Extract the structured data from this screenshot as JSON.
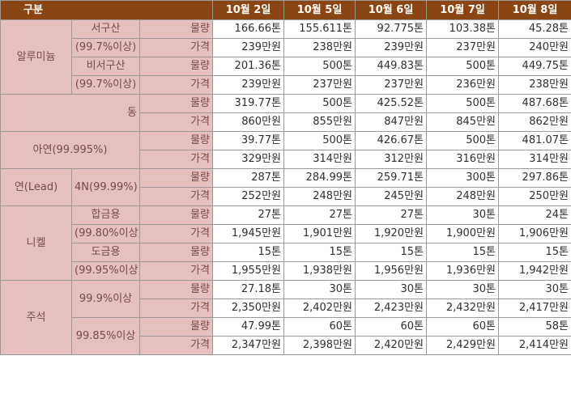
{
  "header": {
    "category": "구분",
    "dates": [
      "10월 2일",
      "10월 5일",
      "10월 6일",
      "10월 7일",
      "10월 8일"
    ]
  },
  "rows": [
    {
      "category": "알루미늄",
      "groups": [
        {
          "subtype": "서구산",
          "grade": "(99.7%이상)",
          "qty_label": "물량",
          "qty": [
            "166.66톤",
            "155.611톤",
            "92.775톤",
            "103.38톤",
            "45.28톤"
          ],
          "price_label": "가격",
          "price": [
            "239만원",
            "238만원",
            "239만원",
            "237만원",
            "240만원"
          ]
        },
        {
          "subtype": "비서구산",
          "grade": "(99.7%이상)",
          "qty_label": "물량",
          "qty": [
            "201.36톤",
            "500톤",
            "449.83톤",
            "500톤",
            "449.75톤"
          ],
          "price_label": "가격",
          "price": [
            "239만원",
            "237만원",
            "237만원",
            "236만원",
            "238만원"
          ]
        }
      ]
    },
    {
      "category": "동",
      "qty_label": "물량",
      "qty": [
        "319.77톤",
        "500톤",
        "425.52톤",
        "500톤",
        "487.68톤"
      ],
      "price_label": "가격",
      "price": [
        "860만원",
        "855만원",
        "847만원",
        "845만원",
        "862만원"
      ]
    },
    {
      "category": "아연(99.995%)",
      "qty_label": "물량",
      "qty": [
        "39.77톤",
        "500톤",
        "426.67톤",
        "500톤",
        "481.07톤"
      ],
      "price_label": "가격",
      "price": [
        "329만원",
        "314만원",
        "312만원",
        "316만원",
        "314만원"
      ]
    },
    {
      "category": "연(Lead)",
      "subtype": "4N(99.99%)",
      "qty_label": "물량",
      "qty": [
        "287톤",
        "284.99톤",
        "259.71톤",
        "300톤",
        "297.86톤"
      ],
      "price_label": "가격",
      "price": [
        "252만원",
        "248만원",
        "245만원",
        "248만원",
        "250만원"
      ]
    },
    {
      "category": "니켈",
      "groups": [
        {
          "subtype": "합금용",
          "grade": "(99.80%이상)",
          "qty_label": "물량",
          "qty": [
            "27톤",
            "27톤",
            "27톤",
            "30톤",
            "24톤"
          ],
          "price_label": "가격",
          "price": [
            "1,945만원",
            "1,901만원",
            "1,920만원",
            "1,900만원",
            "1,906만원"
          ]
        },
        {
          "subtype": "도금용",
          "grade": "(99.95%이상)",
          "qty_label": "물량",
          "qty": [
            "15톤",
            "15톤",
            "15톤",
            "15톤",
            "15톤"
          ],
          "price_label": "가격",
          "price": [
            "1,955만원",
            "1,938만원",
            "1,956만원",
            "1,936만원",
            "1,942만원"
          ]
        }
      ]
    },
    {
      "category": "주석",
      "groups": [
        {
          "subtype": "99.9%이상",
          "qty_label": "물량",
          "qty": [
            "27.18톤",
            "30톤",
            "30톤",
            "30톤",
            "30톤"
          ],
          "price_label": "가격",
          "price": [
            "2,350만원",
            "2,402만원",
            "2,423만원",
            "2,432만원",
            "2,417만원"
          ]
        },
        {
          "subtype": "99.85%이상",
          "qty_label": "물량",
          "qty": [
            "47.99톤",
            "60톤",
            "60톤",
            "60톤",
            "58톤"
          ],
          "price_label": "가격",
          "price": [
            "2,347만원",
            "2,398만원",
            "2,420만원",
            "2,429만원",
            "2,414만원"
          ]
        }
      ]
    }
  ]
}
